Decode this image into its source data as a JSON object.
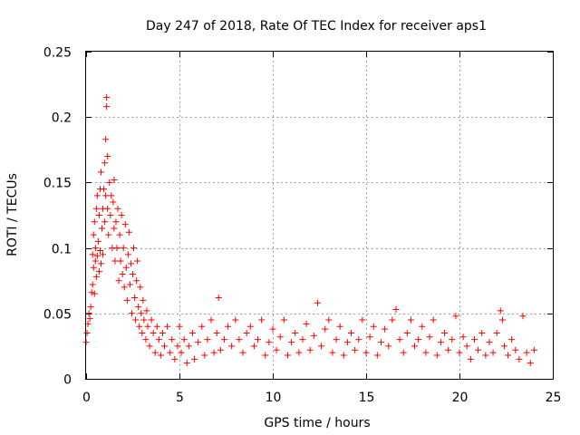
{
  "chart_data": {
    "type": "scatter",
    "title": "Day 247 of 2018, Rate Of TEC Index for receiver aps1",
    "xlabel": "GPS time / hours",
    "ylabel": "ROTI / TECUs",
    "xlim": [
      0,
      25
    ],
    "ylim": [
      0,
      0.25
    ],
    "x_ticks": [
      0,
      5,
      10,
      15,
      20,
      25
    ],
    "y_ticks": [
      0,
      0.05,
      0.1,
      0.15,
      0.2,
      0.25
    ],
    "x_tick_labels": [
      "0",
      "5",
      "10",
      "15",
      "20",
      "25"
    ],
    "y_tick_labels": [
      "0",
      "0.05",
      "0.1",
      "0.15",
      "0.2",
      "0.25"
    ],
    "grid": true,
    "marker": "+",
    "series_color": "#ff0000",
    "series": [
      {
        "name": "ROTI",
        "points": [
          [
            0.0,
            0.028
          ],
          [
            0.05,
            0.035
          ],
          [
            0.1,
            0.042
          ],
          [
            0.15,
            0.05
          ],
          [
            0.2,
            0.046
          ],
          [
            0.25,
            0.055
          ],
          [
            0.3,
            0.066
          ],
          [
            0.35,
            0.072
          ],
          [
            0.35,
            0.095
          ],
          [
            0.4,
            0.085
          ],
          [
            0.4,
            0.11
          ],
          [
            0.45,
            0.065
          ],
          [
            0.45,
            0.12
          ],
          [
            0.5,
            0.09
          ],
          [
            0.5,
            0.1
          ],
          [
            0.55,
            0.078
          ],
          [
            0.55,
            0.13
          ],
          [
            0.6,
            0.094
          ],
          [
            0.6,
            0.14
          ],
          [
            0.65,
            0.105
          ],
          [
            0.7,
            0.082
          ],
          [
            0.7,
            0.125
          ],
          [
            0.75,
            0.098
          ],
          [
            0.75,
            0.145
          ],
          [
            0.8,
            0.088
          ],
          [
            0.8,
            0.158
          ],
          [
            0.85,
            0.115
          ],
          [
            0.9,
            0.13
          ],
          [
            0.9,
            0.095
          ],
          [
            0.95,
            0.145
          ],
          [
            1.0,
            0.165
          ],
          [
            1.0,
            0.12
          ],
          [
            1.05,
            0.183
          ],
          [
            1.05,
            0.14
          ],
          [
            1.1,
            0.208
          ],
          [
            1.1,
            0.215
          ],
          [
            1.15,
            0.17
          ],
          [
            1.15,
            0.13
          ],
          [
            1.2,
            0.11
          ],
          [
            1.25,
            0.15
          ],
          [
            1.3,
            0.125
          ],
          [
            1.35,
            0.14
          ],
          [
            1.4,
            0.1
          ],
          [
            1.45,
            0.135
          ],
          [
            1.5,
            0.152
          ],
          [
            1.5,
            0.115
          ],
          [
            1.55,
            0.09
          ],
          [
            1.6,
            0.12
          ],
          [
            1.65,
            0.1
          ],
          [
            1.7,
            0.13
          ],
          [
            1.75,
            0.075
          ],
          [
            1.8,
            0.11
          ],
          [
            1.85,
            0.09
          ],
          [
            1.9,
            0.125
          ],
          [
            1.95,
            0.08
          ],
          [
            2.0,
            0.1
          ],
          [
            2.05,
            0.07
          ],
          [
            2.1,
            0.118
          ],
          [
            2.15,
            0.085
          ],
          [
            2.2,
            0.06
          ],
          [
            2.25,
            0.095
          ],
          [
            2.3,
            0.112
          ],
          [
            2.35,
            0.072
          ],
          [
            2.4,
            0.088
          ],
          [
            2.45,
            0.05
          ],
          [
            2.5,
            0.08
          ],
          [
            2.55,
            0.1
          ],
          [
            2.6,
            0.062
          ],
          [
            2.65,
            0.045
          ],
          [
            2.7,
            0.075
          ],
          [
            2.75,
            0.09
          ],
          [
            2.8,
            0.055
          ],
          [
            2.85,
            0.04
          ],
          [
            2.9,
            0.07
          ],
          [
            2.95,
            0.05
          ],
          [
            3.0,
            0.035
          ],
          [
            3.05,
            0.06
          ],
          [
            3.1,
            0.045
          ],
          [
            3.2,
            0.03
          ],
          [
            3.25,
            0.052
          ],
          [
            3.3,
            0.04
          ],
          [
            3.4,
            0.025
          ],
          [
            3.5,
            0.045
          ],
          [
            3.6,
            0.035
          ],
          [
            3.7,
            0.02
          ],
          [
            3.8,
            0.04
          ],
          [
            3.9,
            0.03
          ],
          [
            4.0,
            0.018
          ],
          [
            4.1,
            0.035
          ],
          [
            4.2,
            0.025
          ],
          [
            4.35,
            0.04
          ],
          [
            4.5,
            0.02
          ],
          [
            4.6,
            0.03
          ],
          [
            4.75,
            0.015
          ],
          [
            4.9,
            0.025
          ],
          [
            5.0,
            0.04
          ],
          [
            5.1,
            0.02
          ],
          [
            5.25,
            0.03
          ],
          [
            5.4,
            0.012
          ],
          [
            5.5,
            0.025
          ],
          [
            5.7,
            0.035
          ],
          [
            5.8,
            0.015
          ],
          [
            6.0,
            0.028
          ],
          [
            6.2,
            0.04
          ],
          [
            6.35,
            0.018
          ],
          [
            6.5,
            0.03
          ],
          [
            6.7,
            0.045
          ],
          [
            6.85,
            0.02
          ],
          [
            7.0,
            0.035
          ],
          [
            7.1,
            0.062
          ],
          [
            7.2,
            0.022
          ],
          [
            7.4,
            0.03
          ],
          [
            7.6,
            0.04
          ],
          [
            7.8,
            0.025
          ],
          [
            8.0,
            0.045
          ],
          [
            8.2,
            0.03
          ],
          [
            8.4,
            0.02
          ],
          [
            8.6,
            0.035
          ],
          [
            8.8,
            0.04
          ],
          [
            9.0,
            0.025
          ],
          [
            9.2,
            0.03
          ],
          [
            9.4,
            0.045
          ],
          [
            9.6,
            0.018
          ],
          [
            9.8,
            0.028
          ],
          [
            10.0,
            0.038
          ],
          [
            10.2,
            0.022
          ],
          [
            10.4,
            0.032
          ],
          [
            10.6,
            0.045
          ],
          [
            10.8,
            0.018
          ],
          [
            11.0,
            0.028
          ],
          [
            11.2,
            0.035
          ],
          [
            11.4,
            0.02
          ],
          [
            11.6,
            0.03
          ],
          [
            11.8,
            0.042
          ],
          [
            12.0,
            0.022
          ],
          [
            12.2,
            0.033
          ],
          [
            12.4,
            0.058
          ],
          [
            12.6,
            0.025
          ],
          [
            12.8,
            0.038
          ],
          [
            13.0,
            0.045
          ],
          [
            13.2,
            0.02
          ],
          [
            13.4,
            0.03
          ],
          [
            13.6,
            0.04
          ],
          [
            13.8,
            0.018
          ],
          [
            14.0,
            0.028
          ],
          [
            14.2,
            0.035
          ],
          [
            14.4,
            0.022
          ],
          [
            14.6,
            0.03
          ],
          [
            14.8,
            0.045
          ],
          [
            15.0,
            0.02
          ],
          [
            15.2,
            0.032
          ],
          [
            15.4,
            0.04
          ],
          [
            15.6,
            0.018
          ],
          [
            15.8,
            0.028
          ],
          [
            16.0,
            0.038
          ],
          [
            16.2,
            0.025
          ],
          [
            16.4,
            0.045
          ],
          [
            16.6,
            0.053
          ],
          [
            16.8,
            0.03
          ],
          [
            17.0,
            0.02
          ],
          [
            17.2,
            0.035
          ],
          [
            17.4,
            0.045
          ],
          [
            17.6,
            0.025
          ],
          [
            17.8,
            0.03
          ],
          [
            18.0,
            0.04
          ],
          [
            18.2,
            0.02
          ],
          [
            18.4,
            0.032
          ],
          [
            18.6,
            0.045
          ],
          [
            18.8,
            0.018
          ],
          [
            19.0,
            0.028
          ],
          [
            19.2,
            0.035
          ],
          [
            19.4,
            0.022
          ],
          [
            19.6,
            0.03
          ],
          [
            19.8,
            0.048
          ],
          [
            20.0,
            0.02
          ],
          [
            20.2,
            0.032
          ],
          [
            20.4,
            0.025
          ],
          [
            20.6,
            0.015
          ],
          [
            20.8,
            0.03
          ],
          [
            21.0,
            0.022
          ],
          [
            21.2,
            0.035
          ],
          [
            21.4,
            0.018
          ],
          [
            21.6,
            0.028
          ],
          [
            21.8,
            0.02
          ],
          [
            22.0,
            0.035
          ],
          [
            22.2,
            0.052
          ],
          [
            22.3,
            0.045
          ],
          [
            22.4,
            0.025
          ],
          [
            22.6,
            0.018
          ],
          [
            22.8,
            0.03
          ],
          [
            23.0,
            0.022
          ],
          [
            23.2,
            0.015
          ],
          [
            23.4,
            0.048
          ],
          [
            23.6,
            0.02
          ],
          [
            23.8,
            0.012
          ],
          [
            24.0,
            0.022
          ]
        ]
      }
    ]
  }
}
